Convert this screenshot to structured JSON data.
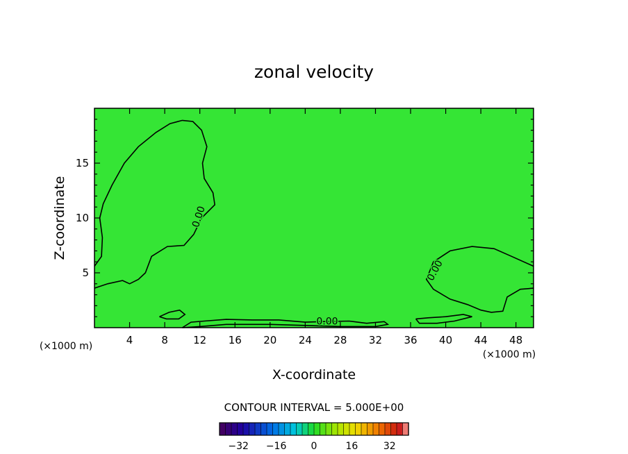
{
  "chart_data": {
    "type": "heatmap",
    "title": "zonal velocity",
    "xlabel": "X-coordinate",
    "ylabel": "Z-coordinate",
    "x_unit_left": "(×1000 m)",
    "x_unit_right": "(×1000 m)",
    "xlim": [
      0,
      50
    ],
    "ylim": [
      0,
      20
    ],
    "x_ticks": [
      4,
      8,
      12,
      16,
      20,
      24,
      28,
      32,
      36,
      40,
      44,
      48
    ],
    "y_ticks": [
      5,
      10,
      15
    ],
    "contour_interval_text": "CONTOUR INTERVAL = 5.000E+00",
    "contour_level": 0,
    "contour_label": "0.00",
    "colorbar": {
      "min": -40,
      "max": 40,
      "step": 2.5,
      "ticks": [
        -32,
        -16,
        0,
        16,
        32
      ]
    },
    "colors": {
      "field": "#35e535",
      "contour": "#000000"
    },
    "contours": [
      {
        "name": "upper-left-zero-contour",
        "points": [
          [
            0,
            5.6
          ],
          [
            0.8,
            6.5
          ],
          [
            0.9,
            8.2
          ],
          [
            0.6,
            10
          ],
          [
            1,
            11.3
          ],
          [
            2,
            13
          ],
          [
            3.4,
            15
          ],
          [
            5,
            16.5
          ],
          [
            7,
            17.8
          ],
          [
            8.6,
            18.6
          ],
          [
            10,
            18.9
          ],
          [
            11.2,
            18.8
          ],
          [
            12.2,
            18
          ],
          [
            12.8,
            16.5
          ],
          [
            12.3,
            15
          ],
          [
            12.5,
            13.6
          ],
          [
            13.5,
            12.3
          ],
          [
            13.7,
            11.2
          ],
          [
            12.2,
            10
          ],
          [
            11.3,
            8.5
          ],
          [
            10.2,
            7.5
          ],
          [
            8.3,
            7.4
          ],
          [
            6.5,
            6.5
          ],
          [
            5.8,
            5
          ],
          [
            5,
            4.4
          ],
          [
            4,
            4
          ],
          [
            3.2,
            4.3
          ],
          [
            1.5,
            4
          ],
          [
            0,
            3.6
          ]
        ]
      },
      {
        "name": "right-zero-contour",
        "points": [
          [
            50,
            5.6
          ],
          [
            47.5,
            6.5
          ],
          [
            45.5,
            7.2
          ],
          [
            43,
            7.4
          ],
          [
            40.5,
            7
          ],
          [
            38.6,
            6
          ],
          [
            37.8,
            4.4
          ],
          [
            38.6,
            3.5
          ],
          [
            40.5,
            2.6
          ],
          [
            42.5,
            2.1
          ],
          [
            44,
            1.6
          ],
          [
            45.2,
            1.4
          ],
          [
            46.5,
            1.5
          ],
          [
            47,
            2.8
          ],
          [
            48.5,
            3.5
          ],
          [
            50,
            3.6
          ]
        ]
      },
      {
        "name": "bottom-zero-contour",
        "points": [
          [
            10,
            0
          ],
          [
            11,
            0.5
          ],
          [
            12.5,
            0.6
          ],
          [
            15,
            0.75
          ],
          [
            18,
            0.7
          ],
          [
            21,
            0.7
          ],
          [
            24,
            0.5
          ],
          [
            26,
            0.55
          ],
          [
            29,
            0.6
          ],
          [
            31,
            0.4
          ],
          [
            33,
            0.55
          ],
          [
            33.4,
            0.3
          ],
          [
            32,
            0.1
          ],
          [
            28,
            0.1
          ],
          [
            24,
            0.2
          ],
          [
            20,
            0.3
          ],
          [
            15,
            0.3
          ],
          [
            12,
            0.1
          ],
          [
            10,
            0
          ]
        ]
      },
      {
        "name": "small-left-zero-contour",
        "points": [
          [
            7.4,
            1
          ],
          [
            8.5,
            1.4
          ],
          [
            9.7,
            1.6
          ],
          [
            10.3,
            1.2
          ],
          [
            9.6,
            0.8
          ],
          [
            8.2,
            0.8
          ],
          [
            7.4,
            1
          ]
        ]
      },
      {
        "name": "small-right-zero-contour",
        "points": [
          [
            36.6,
            0.8
          ],
          [
            38,
            0.9
          ],
          [
            40,
            1
          ],
          [
            42,
            1.2
          ],
          [
            43,
            1
          ],
          [
            41,
            0.6
          ],
          [
            39,
            0.4
          ],
          [
            37,
            0.4
          ],
          [
            36.6,
            0.8
          ]
        ]
      }
    ],
    "contour_labels": [
      {
        "x": 11.9,
        "y": 10.1,
        "angle": -72
      },
      {
        "x": 38.8,
        "y": 5.2,
        "angle": -62
      },
      {
        "x": 26.5,
        "y": 0.55,
        "angle": 0
      }
    ]
  }
}
